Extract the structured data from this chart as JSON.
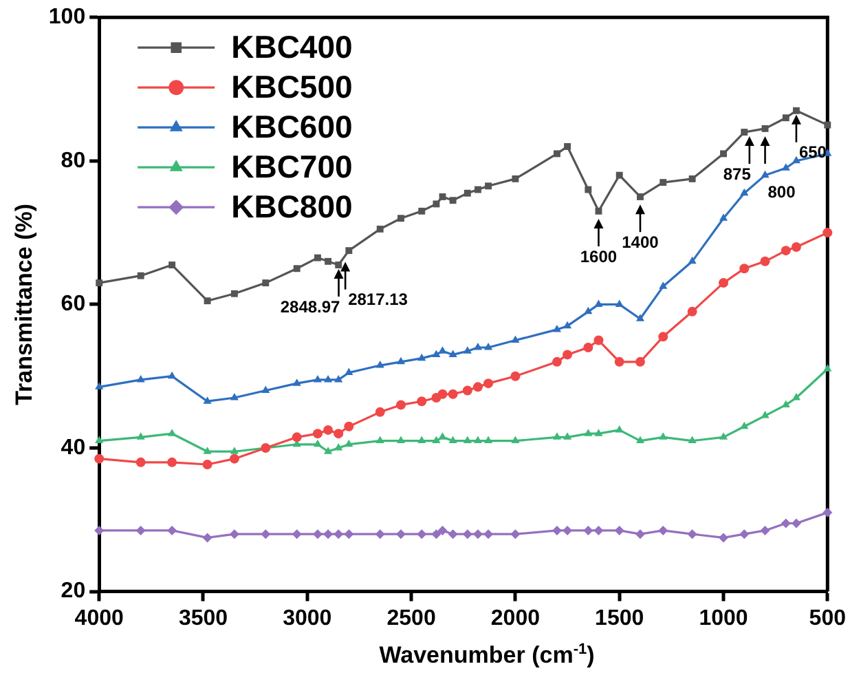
{
  "chart_data": {
    "type": "line",
    "xlabel": "Wavenumber (cm$^{-1}$)",
    "ylabel": "Transmittance (%)",
    "x": [
      4000,
      3800,
      3650,
      3480,
      3350,
      3200,
      3050,
      2950,
      2900,
      2850,
      2800,
      2650,
      2550,
      2450,
      2380,
      2350,
      2300,
      2230,
      2180,
      2130,
      2000,
      1800,
      1750,
      1650,
      1600,
      1500,
      1400,
      1290,
      1150,
      1000,
      900,
      800,
      700,
      650,
      500
    ],
    "series": [
      {
        "name": "KBC400",
        "color": "#555555",
        "marker": "square",
        "values": [
          63,
          64,
          65.5,
          60.5,
          61.5,
          63,
          65,
          66.5,
          66,
          65.5,
          67.5,
          70.5,
          72,
          73,
          74,
          75,
          74.5,
          75.5,
          76,
          76.5,
          77.5,
          81,
          82,
          76,
          73,
          78,
          75,
          77,
          77.5,
          81,
          84,
          84.5,
          86,
          87,
          85
        ]
      },
      {
        "name": "KBC500",
        "color": "#f04848",
        "marker": "circle",
        "values": [
          38.5,
          38,
          38,
          37.7,
          38.5,
          40,
          41.5,
          42,
          42.5,
          42,
          43,
          45,
          46,
          46.5,
          47,
          47.5,
          47.5,
          48,
          48.5,
          49,
          50,
          52,
          53,
          54,
          55,
          52,
          52,
          55.5,
          59,
          63,
          65,
          66,
          67.5,
          68,
          70
        ]
      },
      {
        "name": "KBC600",
        "color": "#2e6fc0",
        "marker": "triangle",
        "values": [
          48.5,
          49.5,
          50,
          46.5,
          47,
          48,
          49,
          49.5,
          49.5,
          49.5,
          50.5,
          51.5,
          52,
          52.5,
          53,
          53.5,
          53,
          53.5,
          54,
          54,
          55,
          56.5,
          57,
          59,
          60,
          60,
          58,
          62.5,
          66,
          72,
          75.5,
          78,
          79,
          80,
          81
        ]
      },
      {
        "name": "KBC700",
        "color": "#3cb878",
        "marker": "triangle",
        "values": [
          41,
          41.5,
          42,
          39.5,
          39.5,
          40,
          40.5,
          40.5,
          39.5,
          40,
          40.5,
          41,
          41,
          41,
          41,
          41.5,
          41,
          41,
          41,
          41,
          41,
          41.5,
          41.5,
          42,
          42,
          42.5,
          41,
          41.5,
          41,
          41.5,
          43,
          44.5,
          46,
          47,
          51
        ]
      },
      {
        "name": "KBC800",
        "color": "#9370c0",
        "marker": "diamond",
        "values": [
          28.5,
          28.5,
          28.5,
          27.5,
          28,
          28,
          28,
          28,
          28,
          28,
          28,
          28,
          28,
          28,
          28,
          28.5,
          28,
          28,
          28,
          28,
          28,
          28.5,
          28.5,
          28.5,
          28.5,
          28.5,
          28,
          28.5,
          28,
          27.5,
          28,
          28.5,
          29.5,
          29.5,
          31
        ]
      }
    ],
    "xlim": [
      4000,
      500
    ],
    "xticks": [
      4000,
      3500,
      3000,
      2500,
      2000,
      1500,
      1000,
      500
    ],
    "ylim": [
      20,
      100
    ],
    "yticks": [
      20,
      40,
      60,
      80,
      100
    ],
    "grid": false,
    "legend": "top left",
    "annotations": [
      {
        "text": "2848.97",
        "x": 2848.97,
        "y": 65.5
      },
      {
        "text": "2817.13",
        "x": 2817.13,
        "y": 66.5
      },
      {
        "text": "1600",
        "x": 1600,
        "y": 72.5
      },
      {
        "text": "1400",
        "x": 1400,
        "y": 74.5
      },
      {
        "text": "875",
        "x": 875,
        "y": 84
      },
      {
        "text": "800",
        "x": 800,
        "y": 84
      },
      {
        "text": "650",
        "x": 650,
        "y": 87
      }
    ]
  }
}
